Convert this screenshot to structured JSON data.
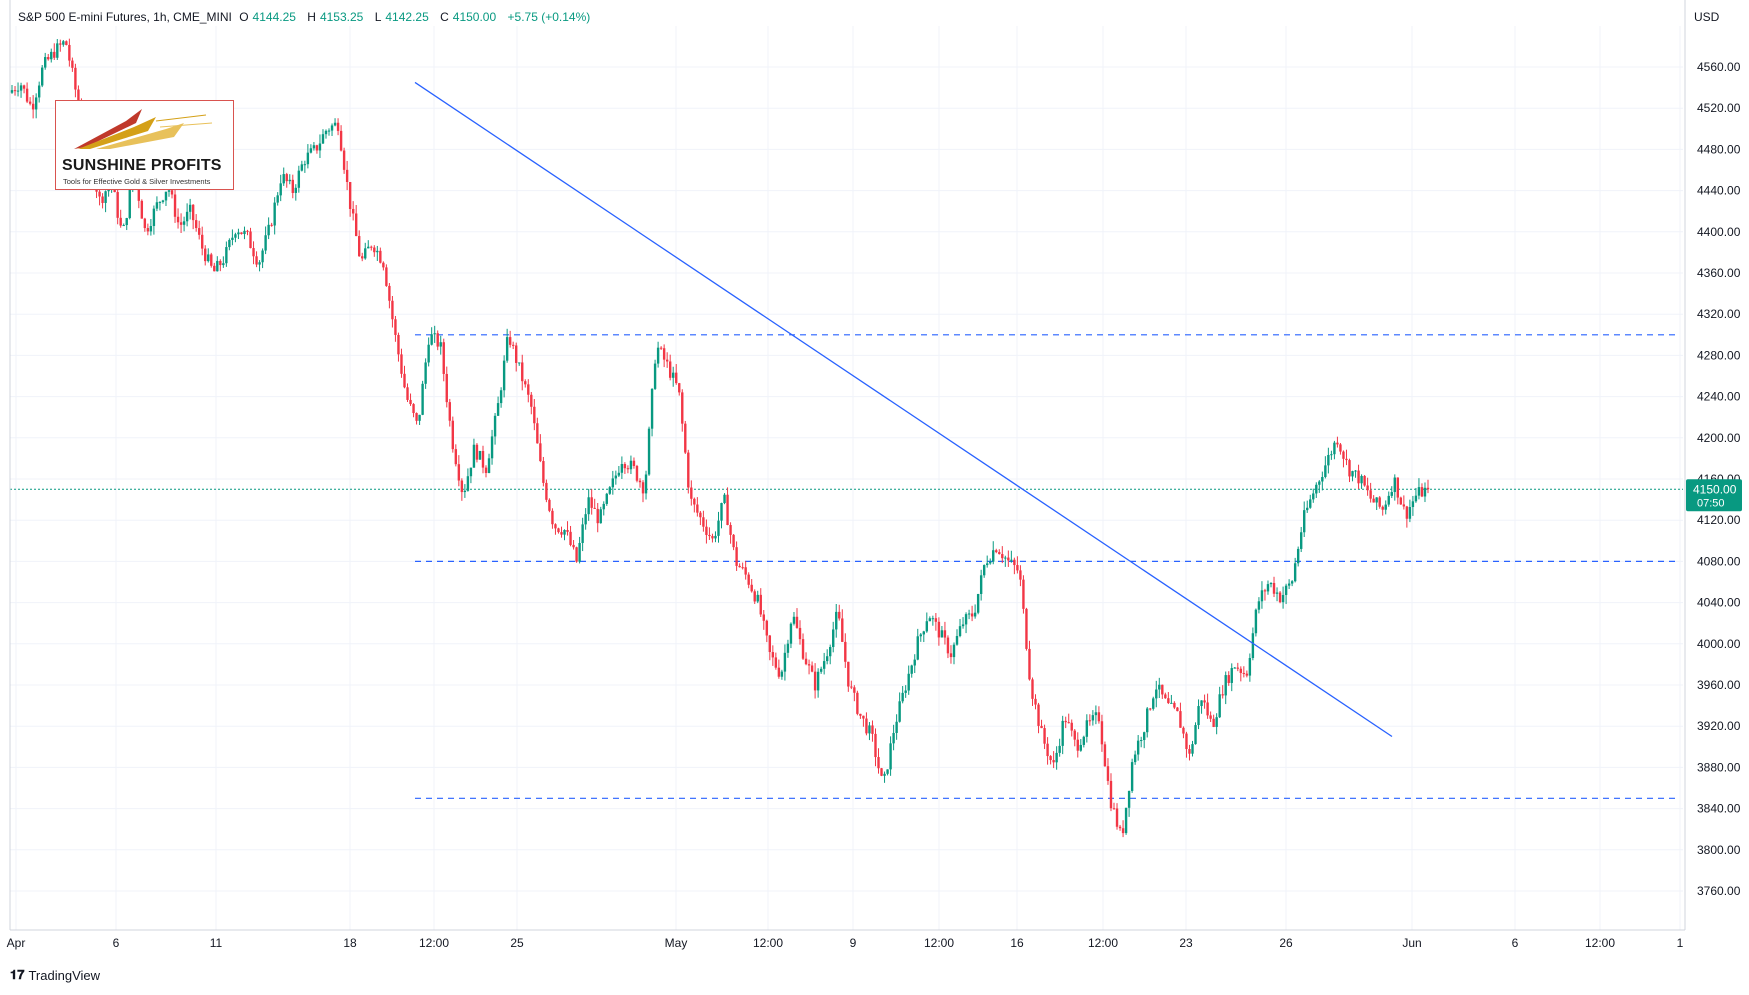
{
  "header": {
    "symbol": "S&P 500 E-mini Futures, 1h, CME_MINI",
    "open_label": "O",
    "open": "4144.25",
    "high_label": "H",
    "high": "4153.25",
    "low_label": "L",
    "low": "4142.25",
    "close_label": "C",
    "close": "4150.00",
    "change": "+5.75 (+0.14%)"
  },
  "currency": "USD",
  "logo": {
    "name": "SUNSHINE PROFITS",
    "tagline": "Tools for Effective Gold & Silver Investments"
  },
  "brand": {
    "name": "TradingView"
  },
  "price_tag": {
    "price": "4150.00",
    "timer": "07:50"
  },
  "colors": {
    "up": "#089981",
    "down": "#f23645",
    "lines": "#2962ff",
    "axis_text": "#131722"
  },
  "chart_data": {
    "type": "candlestick",
    "instrument": "S&P 500 E-mini Futures",
    "interval": "1h",
    "exchange": "CME_MINI",
    "ylim": [
      3730,
      4600
    ],
    "y_ticks": [
      "4560.00",
      "4520.00",
      "4480.00",
      "4440.00",
      "4400.00",
      "4360.00",
      "4320.00",
      "4280.00",
      "4240.00",
      "4200.00",
      "4160.00",
      "4120.00",
      "4080.00",
      "4040.00",
      "4000.00",
      "3960.00",
      "3920.00",
      "3880.00",
      "3840.00",
      "3800.00",
      "3760.00"
    ],
    "x_ticks": [
      "Apr",
      "6",
      "11",
      "18",
      "12:00",
      "25",
      "May",
      "12:00",
      "9",
      "12:00",
      "16",
      "12:00",
      "23",
      "26",
      "Jun",
      "6",
      "12:00",
      "1"
    ],
    "grid": true,
    "last_price": 4150.0,
    "horizontal_levels": [
      4300,
      4080,
      3850
    ],
    "trendline": {
      "from_price": 4545,
      "to_price": 3910
    },
    "price_path": [
      {
        "p": 4535
      },
      {
        "p": 4545
      },
      {
        "p": 4520
      },
      {
        "p": 4560
      },
      {
        "p": 4575
      },
      {
        "p": 4585
      },
      {
        "p": 4530
      },
      {
        "p": 4475
      },
      {
        "p": 4430
      },
      {
        "p": 4450
      },
      {
        "p": 4395
      },
      {
        "p": 4460
      },
      {
        "p": 4400
      },
      {
        "p": 4425
      },
      {
        "p": 4445
      },
      {
        "p": 4405
      },
      {
        "p": 4420
      },
      {
        "p": 4385
      },
      {
        "p": 4360
      },
      {
        "p": 4375
      },
      {
        "p": 4405
      },
      {
        "p": 4395
      },
      {
        "p": 4370
      },
      {
        "p": 4405
      },
      {
        "p": 4455
      },
      {
        "p": 4440
      },
      {
        "p": 4470
      },
      {
        "p": 4480
      },
      {
        "p": 4500
      },
      {
        "p": 4505
      },
      {
        "p": 4430
      },
      {
        "p": 4370
      },
      {
        "p": 4390
      },
      {
        "p": 4370
      },
      {
        "p": 4300
      },
      {
        "p": 4240
      },
      {
        "p": 4210
      },
      {
        "p": 4300
      },
      {
        "p": 4290
      },
      {
        "p": 4200
      },
      {
        "p": 4145
      },
      {
        "p": 4190
      },
      {
        "p": 4170
      },
      {
        "p": 4225
      },
      {
        "p": 4300
      },
      {
        "p": 4265
      },
      {
        "p": 4230
      },
      {
        "p": 4160
      },
      {
        "p": 4115
      },
      {
        "p": 4110
      },
      {
        "p": 4080
      },
      {
        "p": 4140
      },
      {
        "p": 4120
      },
      {
        "p": 4150
      },
      {
        "p": 4180
      },
      {
        "p": 4170
      },
      {
        "p": 4150
      },
      {
        "p": 4290
      },
      {
        "p": 4270
      },
      {
        "p": 4245
      },
      {
        "p": 4140
      },
      {
        "p": 4120
      },
      {
        "p": 4100
      },
      {
        "p": 4140
      },
      {
        "p": 4080
      },
      {
        "p": 4065
      },
      {
        "p": 4040
      },
      {
        "p": 3990
      },
      {
        "p": 3970
      },
      {
        "p": 4030
      },
      {
        "p": 3990
      },
      {
        "p": 3960
      },
      {
        "p": 3990
      },
      {
        "p": 4030
      },
      {
        "p": 3960
      },
      {
        "p": 3930
      },
      {
        "p": 3910
      },
      {
        "p": 3860
      },
      {
        "p": 3920
      },
      {
        "p": 3960
      },
      {
        "p": 4000
      },
      {
        "p": 4030
      },
      {
        "p": 4010
      },
      {
        "p": 3990
      },
      {
        "p": 4020
      },
      {
        "p": 4030
      },
      {
        "p": 4080
      },
      {
        "p": 4095
      },
      {
        "p": 4080
      },
      {
        "p": 4070
      },
      {
        "p": 3960
      },
      {
        "p": 3910
      },
      {
        "p": 3880
      },
      {
        "p": 3930
      },
      {
        "p": 3900
      },
      {
        "p": 3920
      },
      {
        "p": 3930
      },
      {
        "p": 3850
      },
      {
        "p": 3810
      },
      {
        "p": 3890
      },
      {
        "p": 3920
      },
      {
        "p": 3960
      },
      {
        "p": 3940
      },
      {
        "p": 3930
      },
      {
        "p": 3890
      },
      {
        "p": 3950
      },
      {
        "p": 3920
      },
      {
        "p": 3960
      },
      {
        "p": 3980
      },
      {
        "p": 3970
      },
      {
        "p": 4040
      },
      {
        "p": 4060
      },
      {
        "p": 4045
      },
      {
        "p": 4060
      },
      {
        "p": 4120
      },
      {
        "p": 4150
      },
      {
        "p": 4175
      },
      {
        "p": 4200
      },
      {
        "p": 4170
      },
      {
        "p": 4160
      },
      {
        "p": 4140
      },
      {
        "p": 4130
      },
      {
        "p": 4160
      },
      {
        "p": 4125
      },
      {
        "p": 4145
      },
      {
        "p": 4150
      }
    ]
  }
}
